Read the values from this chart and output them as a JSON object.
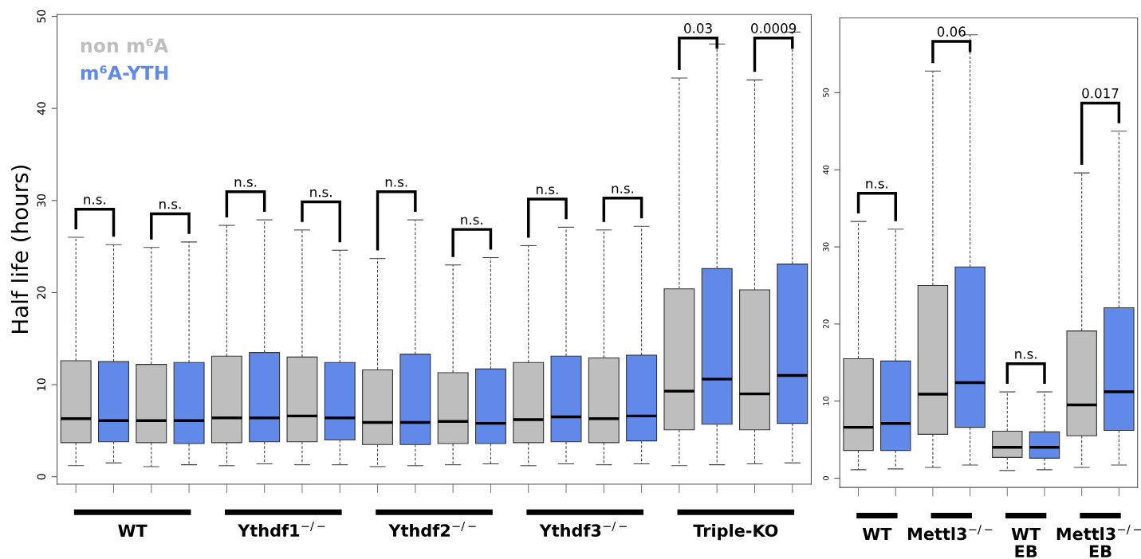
{
  "chart_data": [
    {
      "type": "box",
      "ylabel": "Half life (hours)",
      "categories": [
        null,
        null,
        null,
        null,
        null,
        null,
        null,
        null,
        null,
        null
      ],
      "series": [
        {
          "name": "non m⁶A",
          "color": "#bebebe",
          "boxes": [
            {
              "low": 1.2,
              "q1": 3.7,
              "median": 6.3,
              "q3": 12.6,
              "high": 26.0
            },
            {
              "low": 1.1,
              "q1": 3.7,
              "median": 6.1,
              "q3": 12.2,
              "high": 24.9
            },
            {
              "low": 1.2,
              "q1": 3.7,
              "median": 6.4,
              "q3": 13.1,
              "high": 27.3
            },
            {
              "low": 1.3,
              "q1": 3.8,
              "median": 6.6,
              "q3": 13.0,
              "high": 26.8
            },
            {
              "low": 1.1,
              "q1": 3.5,
              "median": 5.9,
              "q3": 11.6,
              "high": 23.7
            },
            {
              "low": 1.3,
              "q1": 3.6,
              "median": 6.0,
              "q3": 11.3,
              "high": 23.0
            },
            {
              "low": 1.2,
              "q1": 3.7,
              "median": 6.2,
              "q3": 12.4,
              "high": 25.1
            },
            {
              "low": 1.3,
              "q1": 3.7,
              "median": 6.3,
              "q3": 12.9,
              "high": 26.8
            },
            {
              "low": 1.2,
              "q1": 5.1,
              "median": 9.3,
              "q3": 20.4,
              "high": 43.3
            },
            {
              "low": 1.4,
              "q1": 5.1,
              "median": 9.0,
              "q3": 20.3,
              "high": 43.1
            }
          ]
        },
        {
          "name": "m⁶A-YTH",
          "color": "#6189e9",
          "boxes": [
            {
              "low": 1.5,
              "q1": 3.8,
              "median": 6.1,
              "q3": 12.5,
              "high": 25.2
            },
            {
              "low": 1.3,
              "q1": 3.6,
              "median": 6.1,
              "q3": 12.4,
              "high": 25.5
            },
            {
              "low": 1.4,
              "q1": 3.8,
              "median": 6.4,
              "q3": 13.5,
              "high": 27.9
            },
            {
              "low": 1.3,
              "q1": 4.0,
              "median": 6.4,
              "q3": 12.4,
              "high": 24.6
            },
            {
              "low": 1.2,
              "q1": 3.5,
              "median": 5.9,
              "q3": 13.3,
              "high": 27.9
            },
            {
              "low": 1.4,
              "q1": 3.6,
              "median": 5.8,
              "q3": 11.7,
              "high": 23.8
            },
            {
              "low": 1.4,
              "q1": 3.8,
              "median": 6.5,
              "q3": 13.1,
              "high": 27.1
            },
            {
              "low": 1.4,
              "q1": 3.9,
              "median": 6.6,
              "q3": 13.2,
              "high": 27.2
            },
            {
              "low": 1.3,
              "q1": 5.7,
              "median": 10.6,
              "q3": 22.6,
              "high": 47.0
            },
            {
              "low": 1.5,
              "q1": 5.8,
              "median": 11.0,
              "q3": 23.1,
              "high": 48.3
            }
          ]
        }
      ],
      "ylim": [
        -0.8,
        50.2
      ],
      "yticks": [
        0,
        10,
        20,
        30,
        40,
        50
      ],
      "tick_labels": "y",
      "legend": "top left",
      "annotations": [
        "n.s.",
        "n.s.",
        "n.s.",
        "n.s.",
        "n.s.",
        "n.s.",
        "n.s.",
        "n.s.",
        "0.03",
        "0.0009",
        "WT",
        "Ythdf1$^{−/−}$",
        "Ythdf2$^{−/−}$",
        "Ythdf3$^{−/−}$",
        "Triple-KO"
      ]
    },
    {
      "type": "box",
      "categories": [
        null,
        null,
        null,
        null
      ],
      "series": [
        {
          "color": "#bebebe",
          "boxes": [
            {
              "low": 1.1,
              "q1": 3.6,
              "median": 6.6,
              "q3": 15.5,
              "high": 33.3
            },
            {
              "low": 1.4,
              "q1": 5.7,
              "median": 10.9,
              "q3": 25.0,
              "high": 52.8
            },
            {
              "low": 1.0,
              "q1": 2.7,
              "median": 4.0,
              "q3": 6.1,
              "high": 11.2
            },
            {
              "low": 1.4,
              "q1": 5.5,
              "median": 9.5,
              "q3": 19.1,
              "high": 39.6
            }
          ]
        },
        {
          "color": "#6189e9",
          "boxes": [
            {
              "low": 1.2,
              "q1": 3.6,
              "median": 7.1,
              "q3": 15.2,
              "high": 32.3
            },
            {
              "low": 1.7,
              "q1": 6.6,
              "median": 12.4,
              "q3": 27.4,
              "high": 57.5
            },
            {
              "low": 1.1,
              "q1": 2.6,
              "median": 4.0,
              "q3": 6.0,
              "high": 11.2
            },
            {
              "low": 1.7,
              "q1": 6.2,
              "median": 11.2,
              "q3": 22.1,
              "high": 45.0
            }
          ]
        }
      ],
      "ylim": [
        -1.2,
        59.7
      ],
      "yticks": [
        0,
        10,
        20,
        30,
        40,
        50
      ],
      "tick_labels": "y",
      "annotations": [
        "n.s.",
        "0.06",
        "n.s.",
        "0.017",
        "WT",
        "Mettl3$^{−/−}$",
        "WT\nEB",
        "Mettl3$^{−/−}$\nEB"
      ]
    }
  ]
}
